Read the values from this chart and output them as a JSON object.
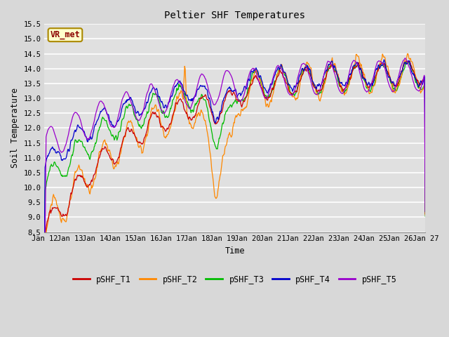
{
  "title": "Peltier SHF Temperatures",
  "xlabel": "Time",
  "ylabel": "Soil Temperature",
  "ylim": [
    8.5,
    15.5
  ],
  "yticks": [
    8.5,
    9.0,
    9.5,
    10.0,
    10.5,
    11.0,
    11.5,
    12.0,
    12.5,
    13.0,
    13.5,
    14.0,
    14.5,
    15.0,
    15.5
  ],
  "bg_color": "#d8d8d8",
  "plot_bg_color": "#e0e0e0",
  "line_colors": {
    "pSHF_T1": "#cc0000",
    "pSHF_T2": "#ff8800",
    "pSHF_T3": "#00bb00",
    "pSHF_T4": "#0000cc",
    "pSHF_T5": "#9900cc"
  },
  "legend_label": "VR_met",
  "legend_box_color": "#ffffcc",
  "legend_box_edge": "#aa8800",
  "xtick_labels": [
    "Jan 12",
    "Jan 13",
    "Jan 14",
    "Jan 15",
    "Jan 16",
    "Jan 17",
    "Jan 18",
    "Jan 19",
    "Jan 20",
    "Jan 21",
    "Jan 22",
    "Jan 23",
    "Jan 24",
    "Jan 25",
    "Jan 26",
    "Jan 27"
  ],
  "font_family": "monospace"
}
